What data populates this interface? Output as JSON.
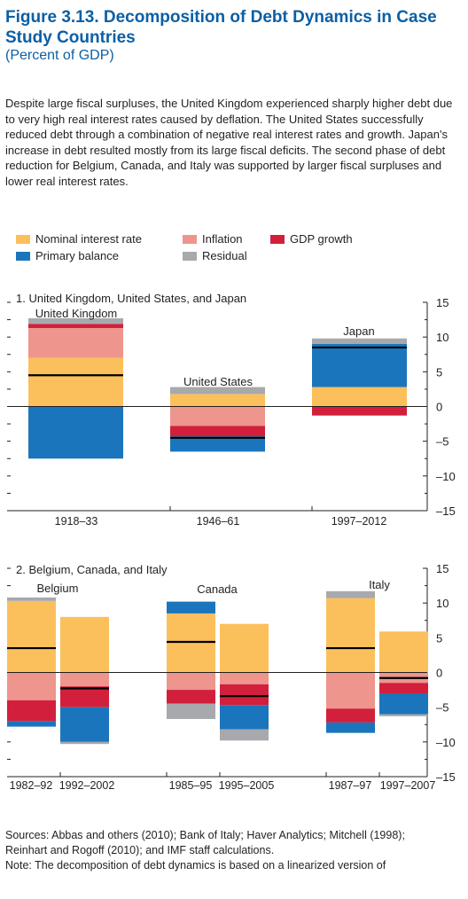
{
  "figure": {
    "title": "Figure 3.13. Decomposition of Debt Dynamics in Case Study Countries",
    "subtitle": "(Percent of GDP)",
    "intro": "Despite large fiscal surpluses, the United Kingdom experienced sharply higher debt due to very high real interest rates caused by deflation. The United States successfully reduced debt through a combination of negative real interest rates and growth. Japan's increase in debt resulted mostly from its large fiscal deficits. The second phase of debt reduction for Belgium, Canada, and Italy was supported by larger fiscal surpluses and lower real interest rates."
  },
  "legend": [
    {
      "key": "nominal",
      "label": "Nominal interest rate",
      "color": "#fbc05c"
    },
    {
      "key": "inflation",
      "label": "Inflation",
      "color": "#ee958d"
    },
    {
      "key": "growth",
      "label": "GDP growth",
      "color": "#d21f3c"
    },
    {
      "key": "primary",
      "label": "Primary balance",
      "color": "#1b75bc"
    },
    {
      "key": "residual",
      "label": "Residual",
      "color": "#a7a9ac"
    }
  ],
  "chart_data": [
    {
      "type": "bar",
      "stacked": true,
      "title": "1. United Kingdom, United States, and Japan",
      "ylim": [
        -15,
        15
      ],
      "yticks": [
        15,
        10,
        5,
        0,
        -5,
        -10,
        -15
      ],
      "tick_labels": [
        "15",
        "10",
        "5",
        "0",
        "–5",
        "–10",
        "–15"
      ],
      "axis_side": "right",
      "groups": [
        {
          "label": "United Kingdom",
          "period": "1918–33",
          "bars": [
            {
              "primary": -7.5,
              "nominal": 7,
              "inflation": 4.3,
              "growth": 0.6,
              "residual": 0.8,
              "net": 4.5
            }
          ]
        },
        {
          "label": "United States",
          "period": "1946–61",
          "bars": [
            {
              "nominal": 1.8,
              "inflation": -2.8,
              "growth": -1.5,
              "primary": -2.2,
              "residual": 1,
              "net": -4.5
            }
          ]
        },
        {
          "label": "Japan",
          "period": "1997–2012",
          "bars": [
            {
              "nominal": 2.8,
              "primary": 6.2,
              "residual": 0.8,
              "growth": -1.3,
              "net": 8.5
            }
          ]
        }
      ]
    },
    {
      "type": "bar",
      "stacked": true,
      "title": "2. Belgium, Canada, and Italy",
      "ylim": [
        -15,
        15
      ],
      "yticks": [
        15,
        10,
        5,
        0,
        -5,
        -10,
        -15
      ],
      "tick_labels": [
        "15",
        "10",
        "5",
        "0",
        "–5",
        "–10",
        "–15"
      ],
      "axis_side": "right",
      "groups": [
        {
          "label": "Belgium",
          "periods": [
            "1982–92",
            "1992–2002"
          ],
          "bars": [
            {
              "nominal": 10.3,
              "residual": 0.5,
              "inflation": -4,
              "growth": -3,
              "primary": -0.8,
              "net": 3.5
            },
            {
              "nominal": 8,
              "inflation": -2,
              "growth": -3,
              "primary": -5,
              "residual": -0.3,
              "net": -2.3
            }
          ]
        },
        {
          "label": "Canada",
          "periods": [
            "1985–95",
            "1995–2005"
          ],
          "bars": [
            {
              "nominal": 8.5,
              "primary": 1.7,
              "inflation": -2.5,
              "growth": -2,
              "residual": -2.2,
              "net": 4.4
            },
            {
              "nominal": 7,
              "inflation": -1.7,
              "growth": -3,
              "primary": -3.5,
              "residual": -1.6,
              "net": -3.4
            }
          ]
        },
        {
          "label": "Italy",
          "periods": [
            "1987–97",
            "1997–2007"
          ],
          "bars": [
            {
              "nominal": 10.7,
              "residual": 1,
              "inflation": -5.2,
              "growth": -2,
              "primary": -1.5,
              "net": 3.5
            },
            {
              "nominal": 5.9,
              "inflation": -1.5,
              "growth": -1.5,
              "primary": -3,
              "residual": -0.3,
              "net": -0.8
            }
          ]
        }
      ]
    }
  ],
  "sources": [
    "Sources: Abbas and others (2010); Bank of Italy; Haver Analytics; Mitchell (1998);",
    "Reinhart and Rogoff (2010); and IMF staff calculations.",
    "Note: The decomposition of debt dynamics is based on a linearized version of"
  ]
}
